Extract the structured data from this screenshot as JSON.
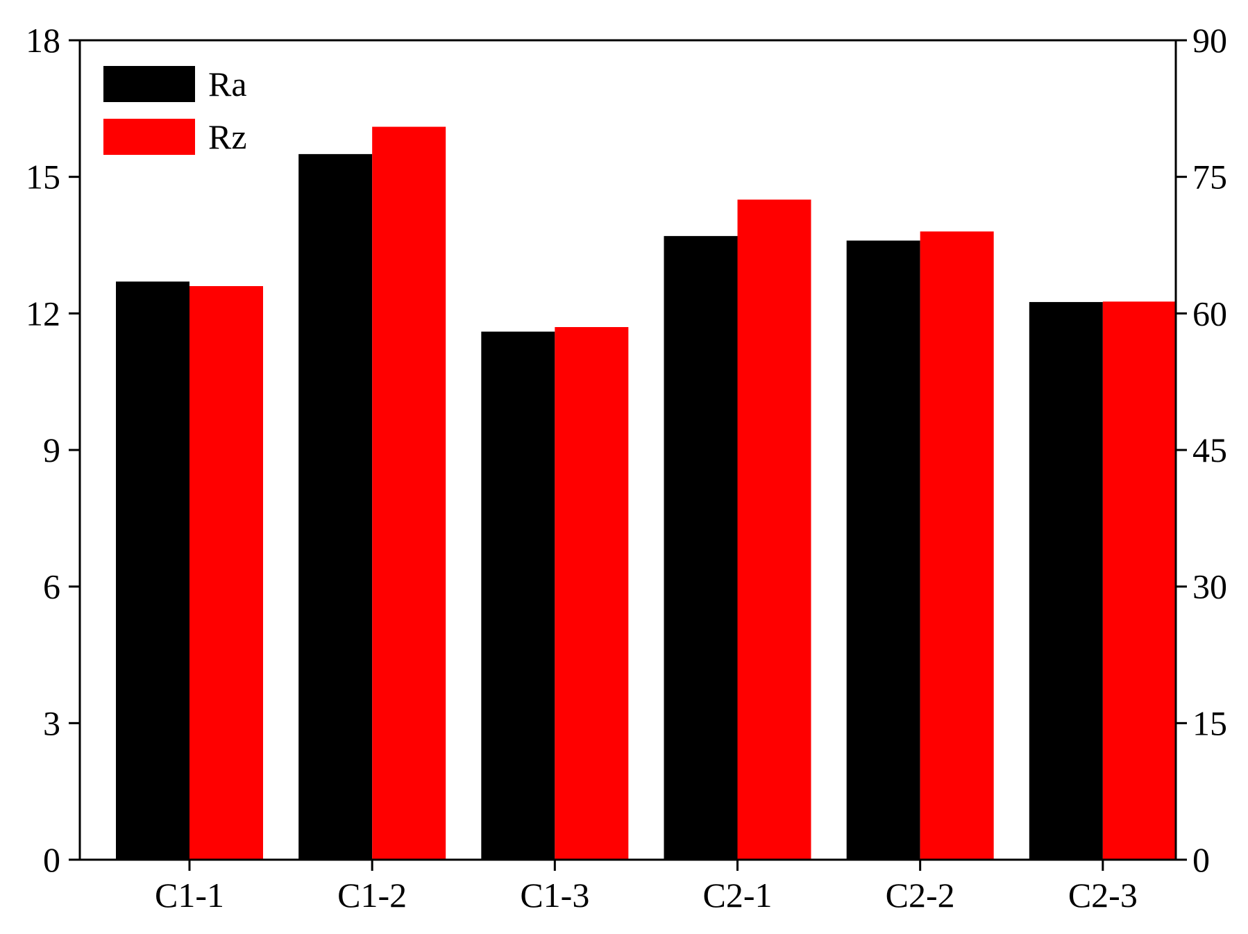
{
  "chart_data": {
    "type": "bar",
    "categories": [
      "C1-1",
      "C1-2",
      "C1-3",
      "C2-1",
      "C2-2",
      "C2-3"
    ],
    "series": [
      {
        "name": "Ra",
        "axis": "left",
        "color": "#000000",
        "values": [
          12.7,
          15.5,
          11.6,
          13.7,
          13.6,
          12.25
        ]
      },
      {
        "name": "Rz",
        "axis": "right",
        "color": "#ff0000",
        "values": [
          63.0,
          80.5,
          58.5,
          72.5,
          69.0,
          61.3
        ]
      }
    ],
    "ylim_left": [
      0,
      18
    ],
    "yticks_left": [
      0,
      3,
      6,
      9,
      12,
      15,
      18
    ],
    "ylim_right": [
      0,
      90
    ],
    "yticks_right": [
      0,
      15,
      30,
      45,
      60,
      75,
      90
    ],
    "grid": false,
    "legend": "top-left"
  }
}
